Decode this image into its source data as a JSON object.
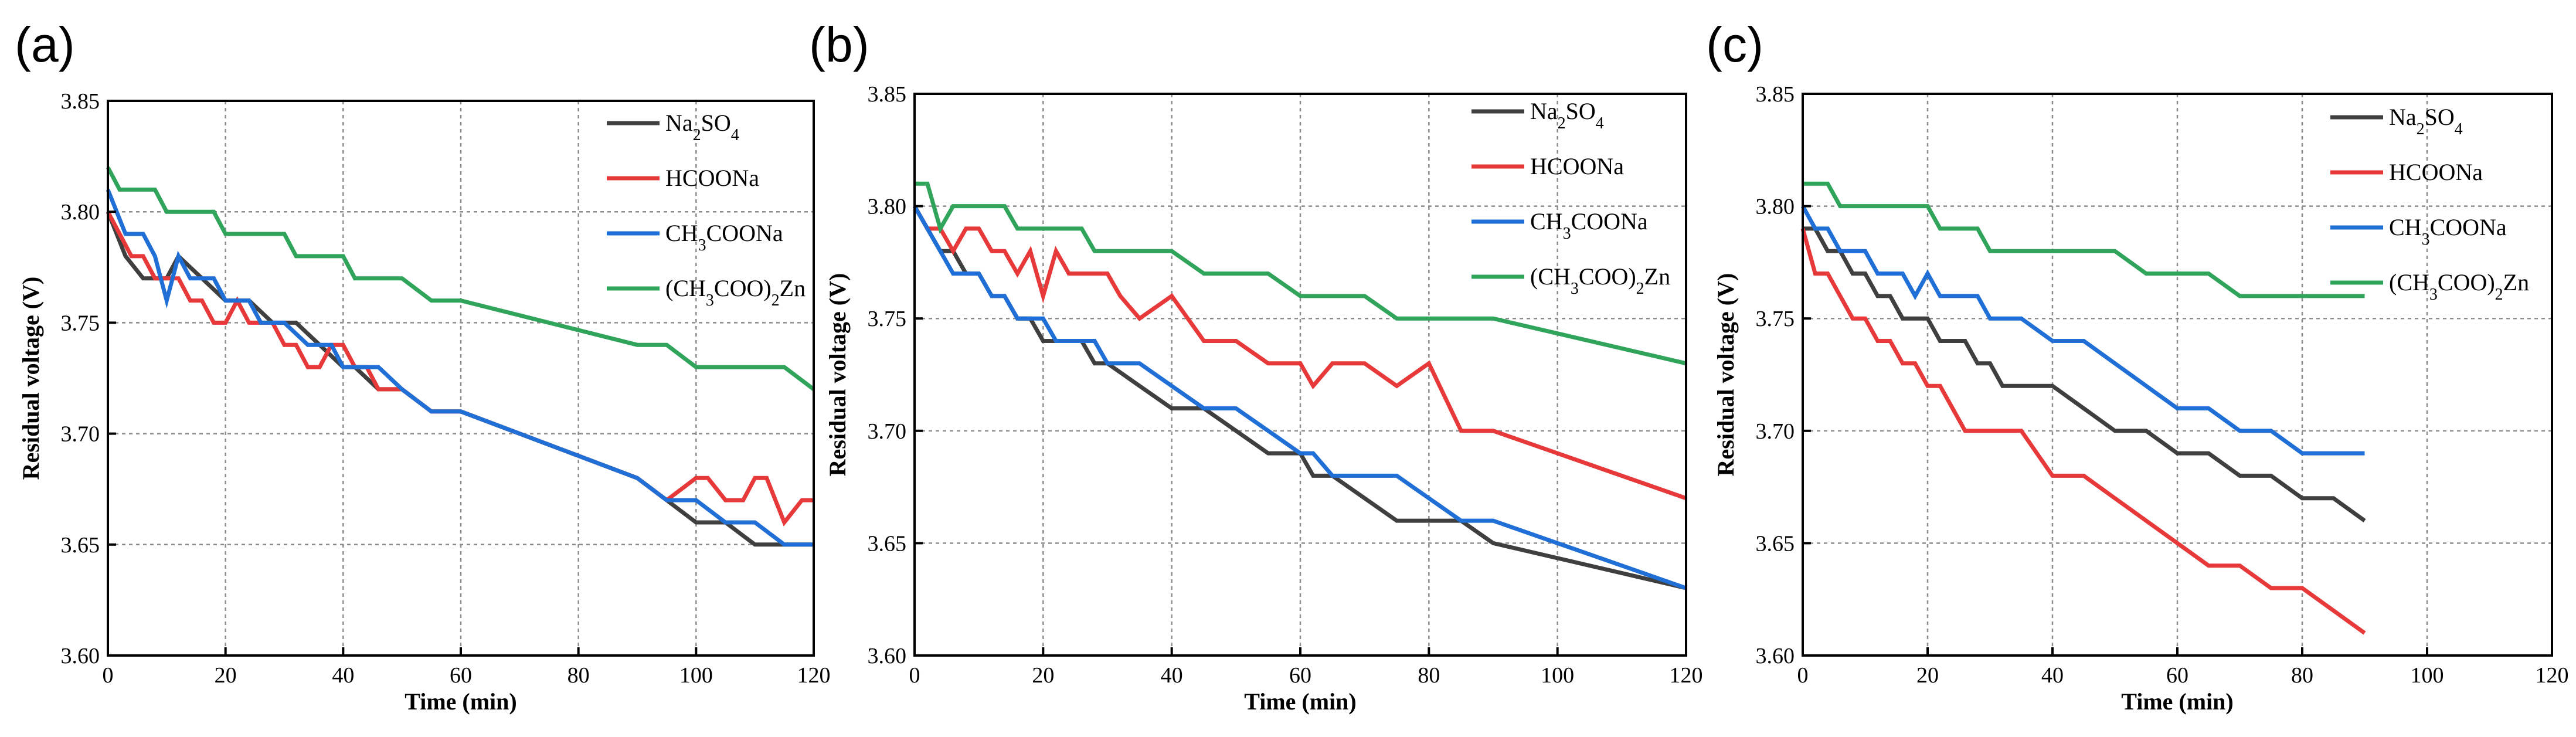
{
  "colors": {
    "Na2SO4": "#3f3f3f",
    "HCOONa": "#e8393a",
    "CH3COONa": "#1f6fd6",
    "Zn": "#2fa45a"
  },
  "legend": [
    {
      "key": "Na2SO4",
      "name": "Na2SO4",
      "parts": [
        {
          "t": "Na"
        },
        {
          "t": "2",
          "sub": true
        },
        {
          "t": "SO"
        },
        {
          "t": "4",
          "sub": true
        }
      ]
    },
    {
      "key": "HCOONa",
      "name": "HCOONa",
      "parts": [
        {
          "t": "HCOONa"
        }
      ]
    },
    {
      "key": "CH3COONa",
      "name": "CH3COONa",
      "parts": [
        {
          "t": "CH"
        },
        {
          "t": "3",
          "sub": true
        },
        {
          "t": "COONa"
        }
      ]
    },
    {
      "key": "Zn",
      "name": "(CH3COO)2Zn",
      "parts": [
        {
          "t": "(CH"
        },
        {
          "t": "3",
          "sub": true
        },
        {
          "t": "COO)"
        },
        {
          "t": "2",
          "sub": true
        },
        {
          "t": "Zn"
        }
      ]
    }
  ],
  "chart_data": [
    {
      "panel": "(a)",
      "type": "line",
      "xlabel": "Time (min)",
      "ylabel": "Residual voltage (V)",
      "xlim": [
        0,
        120
      ],
      "ylim": [
        3.6,
        3.85
      ],
      "xticks": [
        0,
        20,
        40,
        60,
        80,
        100,
        120
      ],
      "yticks": [
        3.6,
        3.65,
        3.7,
        3.75,
        3.8,
        3.85
      ],
      "ytick_labels": [
        "3.60",
        "3.65",
        "3.70",
        "3.75",
        "3.80",
        "3.85"
      ],
      "grid": true,
      "legend_position": "top-right",
      "series": [
        {
          "key": "Na2SO4",
          "name": "Na2SO4",
          "x": [
            0,
            3,
            6,
            10,
            12,
            16,
            20,
            24,
            28,
            32,
            36,
            40,
            42,
            46,
            50,
            55,
            60,
            90,
            95,
            100,
            105,
            110,
            115,
            120
          ],
          "y": [
            3.8,
            3.78,
            3.77,
            3.77,
            3.78,
            3.77,
            3.76,
            3.76,
            3.75,
            3.75,
            3.74,
            3.73,
            3.73,
            3.72,
            3.72,
            3.71,
            3.71,
            3.68,
            3.67,
            3.66,
            3.66,
            3.65,
            3.65,
            3.65
          ]
        },
        {
          "key": "HCOONa",
          "name": "HCOONa",
          "x": [
            0,
            2,
            4,
            6,
            8,
            10,
            12,
            14,
            16,
            18,
            20,
            22,
            24,
            26,
            28,
            30,
            32,
            34,
            36,
            38,
            40,
            42,
            44,
            46,
            50,
            55,
            60,
            90,
            95,
            100,
            102,
            105,
            108,
            110,
            112,
            115,
            118,
            120
          ],
          "y": [
            3.8,
            3.79,
            3.78,
            3.78,
            3.77,
            3.77,
            3.77,
            3.76,
            3.76,
            3.75,
            3.75,
            3.76,
            3.75,
            3.75,
            3.75,
            3.74,
            3.74,
            3.73,
            3.73,
            3.74,
            3.74,
            3.73,
            3.73,
            3.72,
            3.72,
            3.71,
            3.71,
            3.68,
            3.67,
            3.68,
            3.68,
            3.67,
            3.67,
            3.68,
            3.68,
            3.66,
            3.67,
            3.67
          ]
        },
        {
          "key": "CH3COONa",
          "name": "CH3COONa",
          "x": [
            0,
            3,
            6,
            8,
            10,
            12,
            14,
            16,
            18,
            20,
            22,
            24,
            26,
            30,
            34,
            38,
            40,
            44,
            46,
            50,
            55,
            60,
            90,
            95,
            100,
            105,
            110,
            115,
            120
          ],
          "y": [
            3.81,
            3.79,
            3.79,
            3.78,
            3.76,
            3.78,
            3.77,
            3.77,
            3.77,
            3.76,
            3.76,
            3.76,
            3.75,
            3.75,
            3.74,
            3.74,
            3.73,
            3.73,
            3.73,
            3.72,
            3.71,
            3.71,
            3.68,
            3.67,
            3.67,
            3.66,
            3.66,
            3.65,
            3.65
          ]
        },
        {
          "key": "Zn",
          "name": "(CH3COO)2Zn",
          "x": [
            0,
            2,
            4,
            6,
            8,
            10,
            12,
            14,
            16,
            18,
            20,
            22,
            24,
            26,
            28,
            30,
            32,
            34,
            36,
            38,
            40,
            42,
            44,
            46,
            50,
            55,
            60,
            90,
            95,
            100,
            105,
            110,
            115,
            120
          ],
          "y": [
            3.82,
            3.81,
            3.81,
            3.81,
            3.81,
            3.8,
            3.8,
            3.8,
            3.8,
            3.8,
            3.79,
            3.79,
            3.79,
            3.79,
            3.79,
            3.79,
            3.78,
            3.78,
            3.78,
            3.78,
            3.78,
            3.77,
            3.77,
            3.77,
            3.77,
            3.76,
            3.76,
            3.74,
            3.74,
            3.73,
            3.73,
            3.73,
            3.73,
            3.72
          ]
        }
      ]
    },
    {
      "panel": "(b)",
      "type": "line",
      "xlabel": "Time (min)",
      "ylabel": "Residual voltage (V)",
      "xlim": [
        0,
        120
      ],
      "ylim": [
        3.6,
        3.85
      ],
      "xticks": [
        0,
        20,
        40,
        60,
        80,
        100,
        120
      ],
      "yticks": [
        3.6,
        3.65,
        3.7,
        3.75,
        3.8,
        3.85
      ],
      "ytick_labels": [
        "3.60",
        "3.65",
        "3.70",
        "3.75",
        "3.80",
        "3.85"
      ],
      "grid": true,
      "legend_position": "top-right",
      "series": [
        {
          "key": "Na2SO4",
          "name": "Na2SO4",
          "x": [
            0,
            2,
            4,
            6,
            8,
            10,
            12,
            14,
            16,
            18,
            20,
            22,
            24,
            26,
            28,
            30,
            35,
            40,
            45,
            50,
            55,
            60,
            62,
            65,
            70,
            75,
            80,
            85,
            90,
            120
          ],
          "y": [
            3.8,
            3.79,
            3.78,
            3.78,
            3.77,
            3.77,
            3.76,
            3.76,
            3.75,
            3.75,
            3.74,
            3.74,
            3.74,
            3.74,
            3.73,
            3.73,
            3.72,
            3.71,
            3.71,
            3.7,
            3.69,
            3.69,
            3.68,
            3.68,
            3.67,
            3.66,
            3.66,
            3.66,
            3.65,
            3.63
          ]
        },
        {
          "key": "HCOONa",
          "name": "HCOONa",
          "x": [
            0,
            2,
            4,
            6,
            8,
            10,
            12,
            14,
            16,
            18,
            20,
            22,
            24,
            26,
            28,
            30,
            32,
            35,
            40,
            45,
            50,
            55,
            60,
            62,
            65,
            70,
            75,
            80,
            85,
            90,
            120
          ],
          "y": [
            3.8,
            3.79,
            3.79,
            3.78,
            3.79,
            3.79,
            3.78,
            3.78,
            3.77,
            3.78,
            3.76,
            3.78,
            3.77,
            3.77,
            3.77,
            3.77,
            3.76,
            3.75,
            3.76,
            3.74,
            3.74,
            3.73,
            3.73,
            3.72,
            3.73,
            3.73,
            3.72,
            3.73,
            3.7,
            3.7,
            3.67
          ]
        },
        {
          "key": "CH3COONa",
          "name": "CH3COONa",
          "x": [
            0,
            2,
            4,
            6,
            8,
            10,
            12,
            14,
            16,
            18,
            20,
            22,
            24,
            26,
            28,
            30,
            35,
            40,
            45,
            50,
            55,
            60,
            62,
            65,
            70,
            75,
            80,
            85,
            90,
            120
          ],
          "y": [
            3.8,
            3.79,
            3.78,
            3.77,
            3.77,
            3.77,
            3.76,
            3.76,
            3.75,
            3.75,
            3.75,
            3.74,
            3.74,
            3.74,
            3.74,
            3.73,
            3.73,
            3.72,
            3.71,
            3.71,
            3.7,
            3.69,
            3.69,
            3.68,
            3.68,
            3.68,
            3.67,
            3.66,
            3.66,
            3.63
          ]
        },
        {
          "key": "Zn",
          "name": "(CH3COO)2Zn",
          "x": [
            0,
            2,
            4,
            6,
            8,
            10,
            12,
            14,
            16,
            18,
            20,
            22,
            24,
            26,
            28,
            30,
            35,
            40,
            45,
            50,
            55,
            60,
            65,
            70,
            75,
            80,
            85,
            90,
            120
          ],
          "y": [
            3.81,
            3.81,
            3.79,
            3.8,
            3.8,
            3.8,
            3.8,
            3.8,
            3.79,
            3.79,
            3.79,
            3.79,
            3.79,
            3.79,
            3.78,
            3.78,
            3.78,
            3.78,
            3.77,
            3.77,
            3.77,
            3.76,
            3.76,
            3.76,
            3.75,
            3.75,
            3.75,
            3.75,
            3.73
          ]
        }
      ]
    },
    {
      "panel": "(c)",
      "type": "line",
      "xlabel": "Time (min)",
      "ylabel": "Residual voltage (V)",
      "xlim": [
        0,
        120
      ],
      "ylim": [
        3.6,
        3.85
      ],
      "xticks": [
        0,
        20,
        40,
        60,
        80,
        100,
        120
      ],
      "yticks": [
        3.6,
        3.65,
        3.7,
        3.75,
        3.8,
        3.85
      ],
      "ytick_labels": [
        "3.60",
        "3.65",
        "3.70",
        "3.75",
        "3.80",
        "3.85"
      ],
      "grid": true,
      "legend_position": "top-right",
      "series": [
        {
          "key": "Na2SO4",
          "name": "Na2SO4",
          "x": [
            0,
            2,
            4,
            6,
            8,
            10,
            12,
            14,
            16,
            18,
            20,
            22,
            24,
            26,
            28,
            30,
            32,
            35,
            40,
            45,
            50,
            55,
            60,
            65,
            70,
            75,
            80,
            85,
            90
          ],
          "y": [
            3.79,
            3.79,
            3.78,
            3.78,
            3.77,
            3.77,
            3.76,
            3.76,
            3.75,
            3.75,
            3.75,
            3.74,
            3.74,
            3.74,
            3.73,
            3.73,
            3.72,
            3.72,
            3.72,
            3.71,
            3.7,
            3.7,
            3.69,
            3.69,
            3.68,
            3.68,
            3.67,
            3.67,
            3.66
          ]
        },
        {
          "key": "HCOONa",
          "name": "HCOONa",
          "x": [
            0,
            2,
            4,
            6,
            8,
            10,
            12,
            14,
            16,
            18,
            20,
            22,
            24,
            26,
            28,
            30,
            35,
            40,
            45,
            50,
            55,
            60,
            65,
            70,
            75,
            80,
            85,
            90
          ],
          "y": [
            3.79,
            3.77,
            3.77,
            3.76,
            3.75,
            3.75,
            3.74,
            3.74,
            3.73,
            3.73,
            3.72,
            3.72,
            3.71,
            3.7,
            3.7,
            3.7,
            3.7,
            3.68,
            3.68,
            3.67,
            3.66,
            3.65,
            3.64,
            3.64,
            3.63,
            3.63,
            3.62,
            3.61
          ]
        },
        {
          "key": "CH3COONa",
          "name": "CH3COONa",
          "x": [
            0,
            2,
            4,
            6,
            8,
            10,
            12,
            14,
            16,
            18,
            20,
            22,
            24,
            26,
            28,
            30,
            35,
            40,
            45,
            50,
            55,
            60,
            65,
            70,
            75,
            80,
            85,
            90
          ],
          "y": [
            3.8,
            3.79,
            3.79,
            3.78,
            3.78,
            3.78,
            3.77,
            3.77,
            3.77,
            3.76,
            3.77,
            3.76,
            3.76,
            3.76,
            3.76,
            3.75,
            3.75,
            3.74,
            3.74,
            3.73,
            3.72,
            3.71,
            3.71,
            3.7,
            3.7,
            3.69,
            3.69,
            3.69
          ]
        },
        {
          "key": "Zn",
          "name": "(CH3COO)2Zn",
          "x": [
            0,
            2,
            4,
            6,
            8,
            10,
            15,
            20,
            22,
            24,
            26,
            28,
            30,
            35,
            40,
            45,
            50,
            55,
            60,
            65,
            70,
            75,
            80,
            85,
            90
          ],
          "y": [
            3.81,
            3.81,
            3.81,
            3.8,
            3.8,
            3.8,
            3.8,
            3.8,
            3.79,
            3.79,
            3.79,
            3.79,
            3.78,
            3.78,
            3.78,
            3.78,
            3.78,
            3.77,
            3.77,
            3.77,
            3.76,
            3.76,
            3.76,
            3.76,
            3.76
          ]
        }
      ]
    }
  ]
}
